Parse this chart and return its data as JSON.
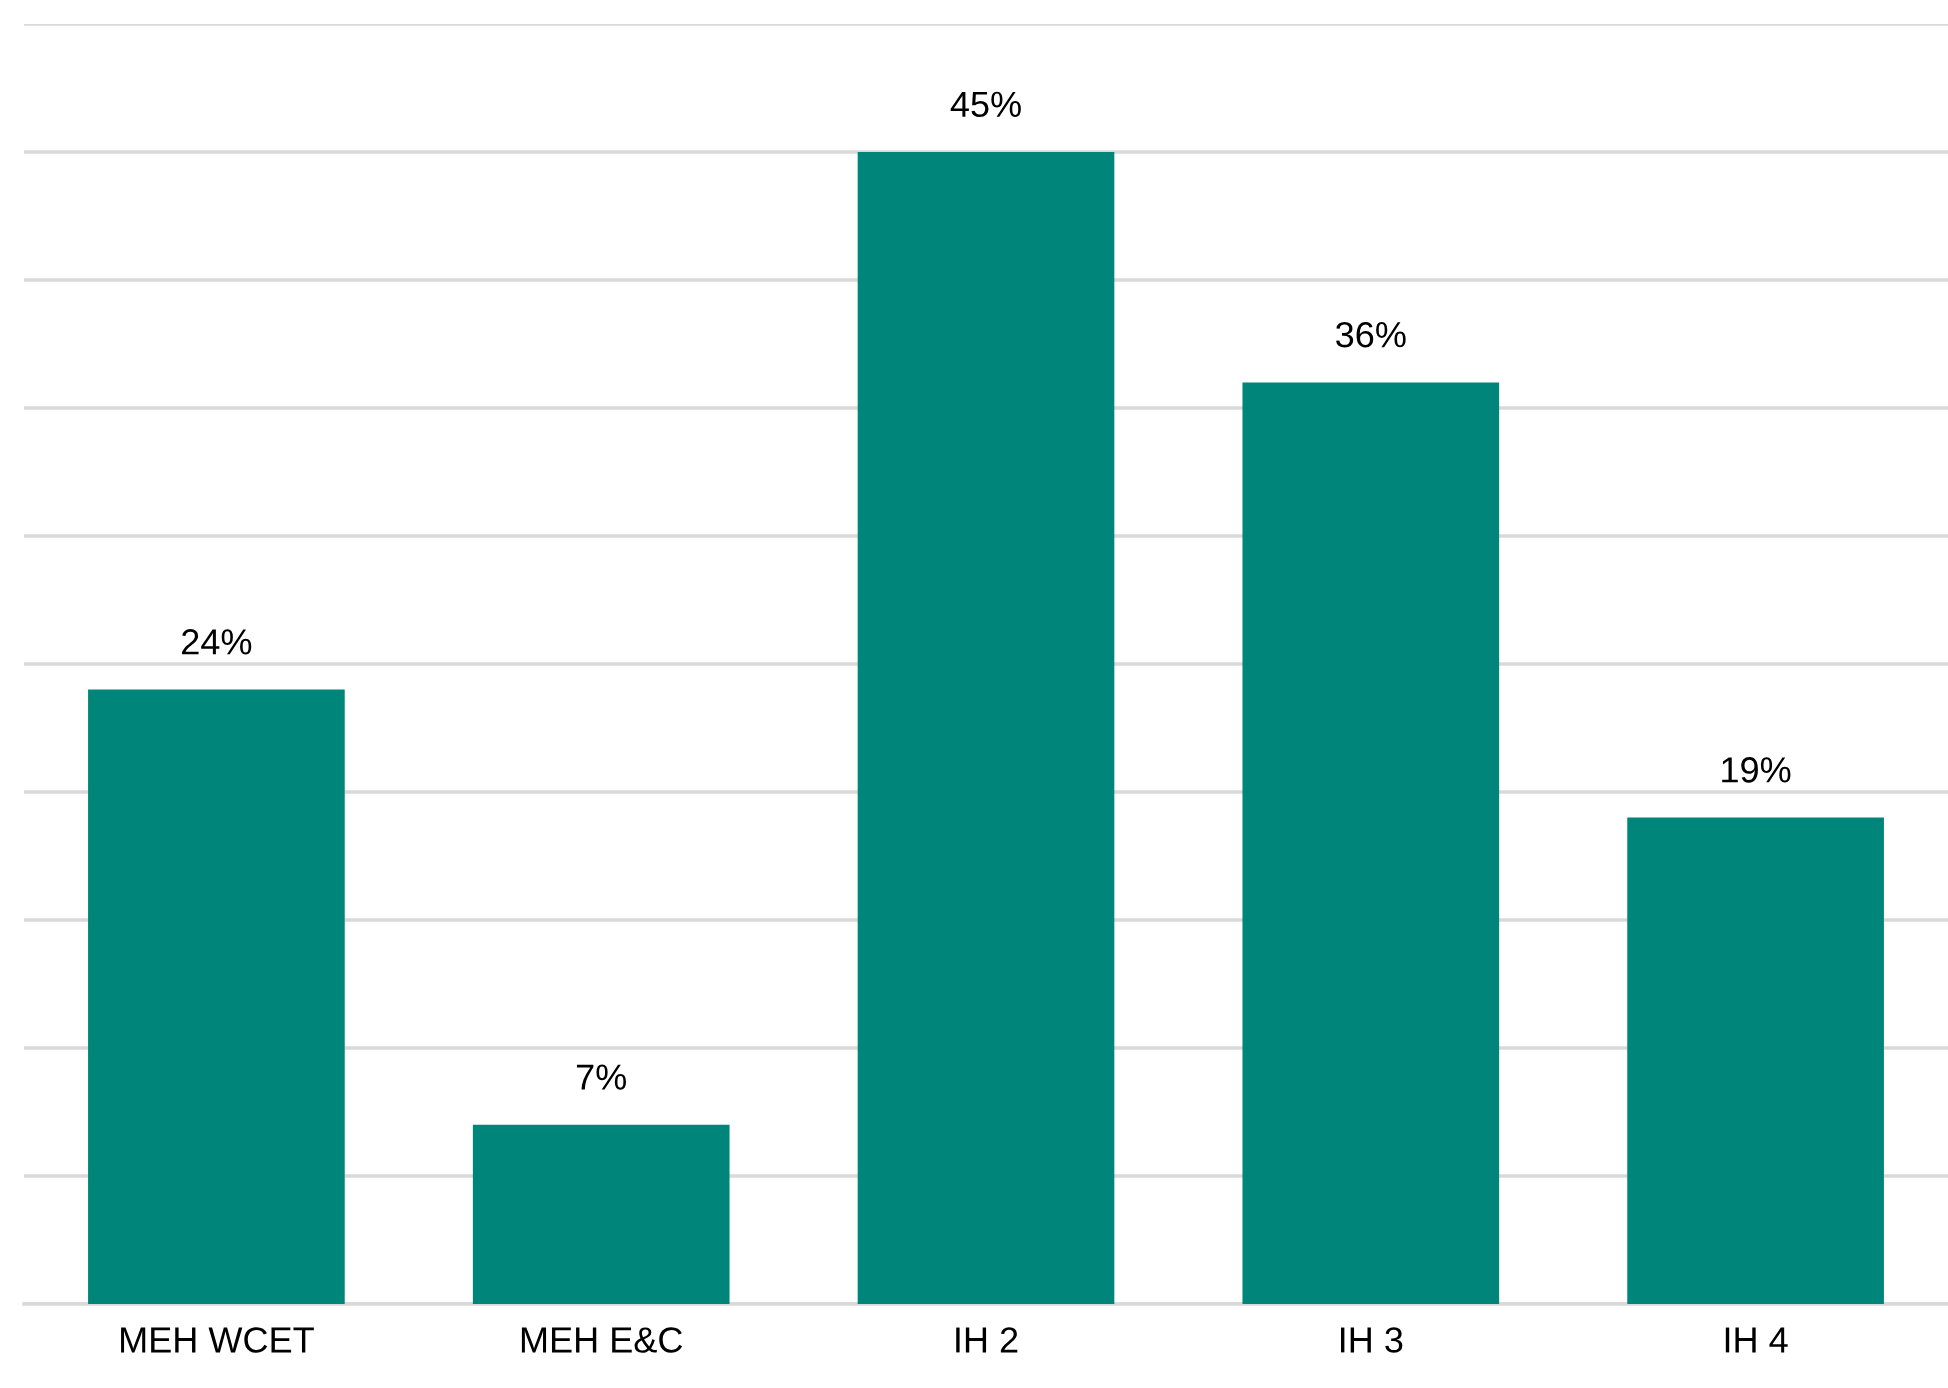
{
  "chart_data": {
    "type": "bar",
    "categories": [
      "MEH WCET",
      "MEH E&C",
      "IH 2",
      "IH 3",
      "IH 4"
    ],
    "values": [
      24,
      7,
      45,
      36,
      19
    ],
    "value_labels": [
      "24%",
      "7%",
      "45%",
      "36%",
      "19%"
    ],
    "color": "#00857a",
    "ylim": [
      0,
      50
    ],
    "yticks": [
      {
        "value": 0,
        "label": null
      },
      {
        "value": 5,
        "label": null
      },
      {
        "value": 10,
        "label": null
      },
      {
        "value": 15,
        "label": null
      },
      {
        "value": 20,
        "label": null
      },
      {
        "value": 25,
        "label": null
      },
      {
        "value": 30,
        "label": null
      },
      {
        "value": 35,
        "label": null
      },
      {
        "value": 40,
        "label": null
      },
      {
        "value": 45,
        "label": null
      },
      {
        "value": 50,
        "label": null
      }
    ],
    "tick_labels": "x",
    "grid": "y"
  }
}
